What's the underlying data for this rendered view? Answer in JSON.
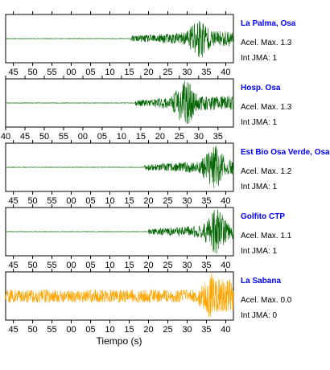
{
  "chart_data": {
    "type": "line",
    "xlabel": "Tiempo (s)",
    "grid": false,
    "panels": [
      {
        "station": "La Palma, Osa",
        "accel_label": "Acel. Max. 1.3",
        "jma_label": "Int JMA: 1",
        "color": "#006400",
        "x_range": [
          43,
          102
        ],
        "tick_values": [
          45,
          50,
          55,
          60,
          65,
          70,
          75,
          80,
          85,
          90,
          95,
          100
        ],
        "tick_labels": [
          "45",
          "50",
          "55",
          "00",
          "05",
          "10",
          "15",
          "20",
          "25",
          "30",
          "35",
          "40"
        ],
        "onset": 75.5,
        "peak_time": 93,
        "peak_amplitude": 1.0,
        "noise_level": 0.01,
        "coda_level": 0.35,
        "seed": 11
      },
      {
        "station": "Hosp. Osa",
        "accel_label": "Acel. Max. 1.3",
        "jma_label": "Int JMA: 1",
        "color": "#006400",
        "x_range": [
          40,
          99
        ],
        "tick_values": [
          40,
          45,
          50,
          55,
          60,
          65,
          70,
          75,
          80,
          85,
          90,
          95
        ],
        "tick_labels": [
          "40",
          "45",
          "50",
          "55",
          "00",
          "05",
          "10",
          "15",
          "20",
          "25",
          "30",
          "35"
        ],
        "onset": 73.5,
        "peak_time": 86.5,
        "peak_amplitude": 1.0,
        "noise_level": 0.01,
        "coda_level": 0.3,
        "seed": 23
      },
      {
        "station": "Est Bio Osa Verde, Osa",
        "accel_label": "Acel. Max. 1.2",
        "jma_label": "Int JMA: 1",
        "color": "#006400",
        "x_range": [
          43,
          102
        ],
        "tick_values": [
          45,
          50,
          55,
          60,
          65,
          70,
          75,
          80,
          85,
          90,
          95,
          100
        ],
        "tick_labels": [
          "45",
          "50",
          "55",
          "00",
          "05",
          "10",
          "15",
          "20",
          "25",
          "30",
          "35",
          "40"
        ],
        "onset": 79,
        "peak_time": 97,
        "peak_amplitude": 1.0,
        "noise_level": 0.01,
        "coda_level": 0.35,
        "seed": 37
      },
      {
        "station": "Golfito CTP",
        "accel_label": "Acel. Max. 1.1",
        "jma_label": "Int JMA: 1",
        "color": "#006400",
        "x_range": [
          43,
          102
        ],
        "tick_values": [
          45,
          50,
          55,
          60,
          65,
          70,
          75,
          80,
          85,
          90,
          95,
          100
        ],
        "tick_labels": [
          "45",
          "50",
          "55",
          "00",
          "05",
          "10",
          "15",
          "20",
          "25",
          "30",
          "35",
          "40"
        ],
        "onset": 80,
        "peak_time": 97.5,
        "peak_amplitude": 1.0,
        "noise_level": 0.01,
        "coda_level": 0.35,
        "seed": 41
      },
      {
        "station": "La Sabana",
        "accel_label": "Acel. Max. 0.0",
        "jma_label": "Int JMA: 0",
        "color": "#ffa500",
        "x_range": [
          43,
          102
        ],
        "tick_values": [
          45,
          50,
          55,
          60,
          65,
          70,
          75,
          80,
          85,
          90,
          95,
          100
        ],
        "tick_labels": [
          "45",
          "50",
          "55",
          "00",
          "05",
          "10",
          "15",
          "20",
          "25",
          "30",
          "35",
          "40"
        ],
        "onset": 80,
        "peak_time": 96,
        "peak_amplitude": 1.0,
        "noise_level": 0.3,
        "coda_level": 0.75,
        "seed": 59
      }
    ]
  }
}
